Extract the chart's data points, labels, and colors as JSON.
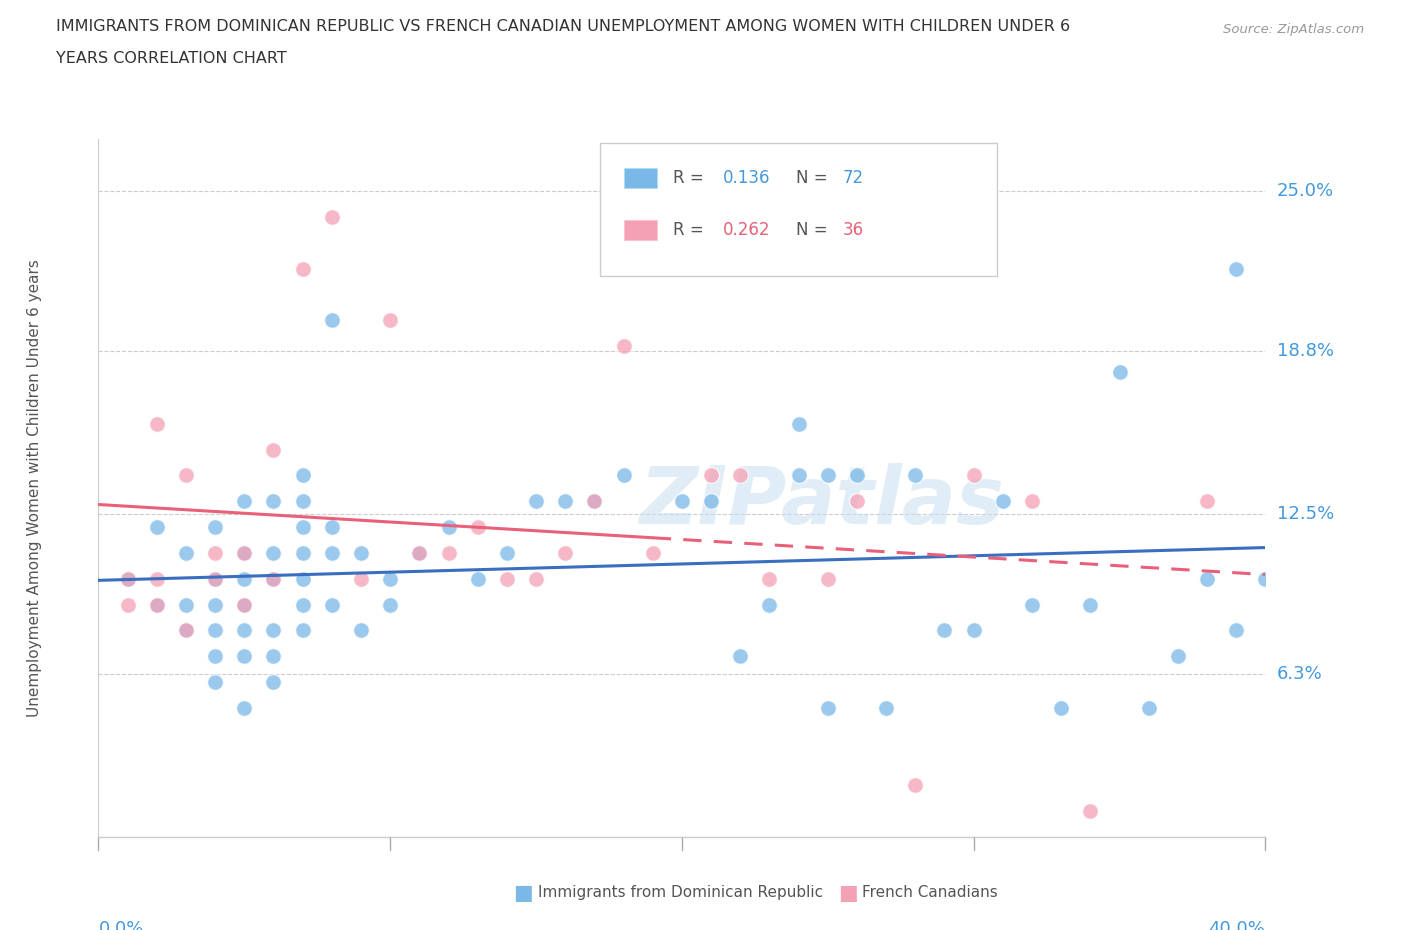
{
  "title_line1": "IMMIGRANTS FROM DOMINICAN REPUBLIC VS FRENCH CANADIAN UNEMPLOYMENT AMONG WOMEN WITH CHILDREN UNDER 6",
  "title_line2": "YEARS CORRELATION CHART",
  "source": "Source: ZipAtlas.com",
  "ylabel": "Unemployment Among Women with Children Under 6 years",
  "ytick_labels": [
    "6.3%",
    "12.5%",
    "18.8%",
    "25.0%"
  ],
  "ytick_values": [
    0.063,
    0.125,
    0.188,
    0.25
  ],
  "xmin": 0.0,
  "xmax": 0.4,
  "ymin": 0.0,
  "ymax": 0.27,
  "color_blue": "#7ab8e8",
  "color_pink": "#f4a0b5",
  "color_blue_line": "#3a6fbf",
  "color_pink_line": "#e8607a",
  "watermark": "ZIPatlas",
  "blue_dots_x": [
    0.01,
    0.02,
    0.02,
    0.03,
    0.03,
    0.03,
    0.04,
    0.04,
    0.04,
    0.04,
    0.04,
    0.04,
    0.05,
    0.05,
    0.05,
    0.05,
    0.05,
    0.05,
    0.05,
    0.06,
    0.06,
    0.06,
    0.06,
    0.06,
    0.06,
    0.07,
    0.07,
    0.07,
    0.07,
    0.07,
    0.07,
    0.07,
    0.08,
    0.08,
    0.08,
    0.08,
    0.09,
    0.09,
    0.1,
    0.1,
    0.11,
    0.12,
    0.13,
    0.14,
    0.15,
    0.16,
    0.17,
    0.18,
    0.2,
    0.21,
    0.22,
    0.23,
    0.24,
    0.24,
    0.25,
    0.25,
    0.26,
    0.27,
    0.28,
    0.29,
    0.3,
    0.31,
    0.32,
    0.33,
    0.34,
    0.35,
    0.36,
    0.37,
    0.38,
    0.39,
    0.39,
    0.4
  ],
  "blue_dots_y": [
    0.1,
    0.09,
    0.12,
    0.08,
    0.09,
    0.11,
    0.06,
    0.07,
    0.08,
    0.09,
    0.1,
    0.12,
    0.05,
    0.07,
    0.08,
    0.09,
    0.1,
    0.11,
    0.13,
    0.06,
    0.07,
    0.08,
    0.1,
    0.11,
    0.13,
    0.08,
    0.09,
    0.1,
    0.11,
    0.12,
    0.13,
    0.14,
    0.09,
    0.11,
    0.12,
    0.2,
    0.08,
    0.11,
    0.09,
    0.1,
    0.11,
    0.12,
    0.1,
    0.11,
    0.13,
    0.13,
    0.13,
    0.14,
    0.13,
    0.13,
    0.07,
    0.09,
    0.14,
    0.16,
    0.05,
    0.14,
    0.14,
    0.05,
    0.14,
    0.08,
    0.08,
    0.13,
    0.09,
    0.05,
    0.09,
    0.18,
    0.05,
    0.07,
    0.1,
    0.08,
    0.22,
    0.1
  ],
  "pink_dots_x": [
    0.01,
    0.01,
    0.02,
    0.02,
    0.02,
    0.03,
    0.03,
    0.04,
    0.04,
    0.05,
    0.05,
    0.06,
    0.06,
    0.07,
    0.08,
    0.09,
    0.1,
    0.11,
    0.12,
    0.13,
    0.14,
    0.15,
    0.16,
    0.17,
    0.18,
    0.19,
    0.21,
    0.22,
    0.23,
    0.25,
    0.26,
    0.28,
    0.3,
    0.32,
    0.34,
    0.38
  ],
  "pink_dots_y": [
    0.09,
    0.1,
    0.09,
    0.1,
    0.16,
    0.08,
    0.14,
    0.1,
    0.11,
    0.09,
    0.11,
    0.1,
    0.15,
    0.22,
    0.24,
    0.1,
    0.2,
    0.11,
    0.11,
    0.12,
    0.1,
    0.1,
    0.11,
    0.13,
    0.19,
    0.11,
    0.14,
    0.14,
    0.1,
    0.1,
    0.13,
    0.02,
    0.14,
    0.13,
    0.01,
    0.13
  ]
}
